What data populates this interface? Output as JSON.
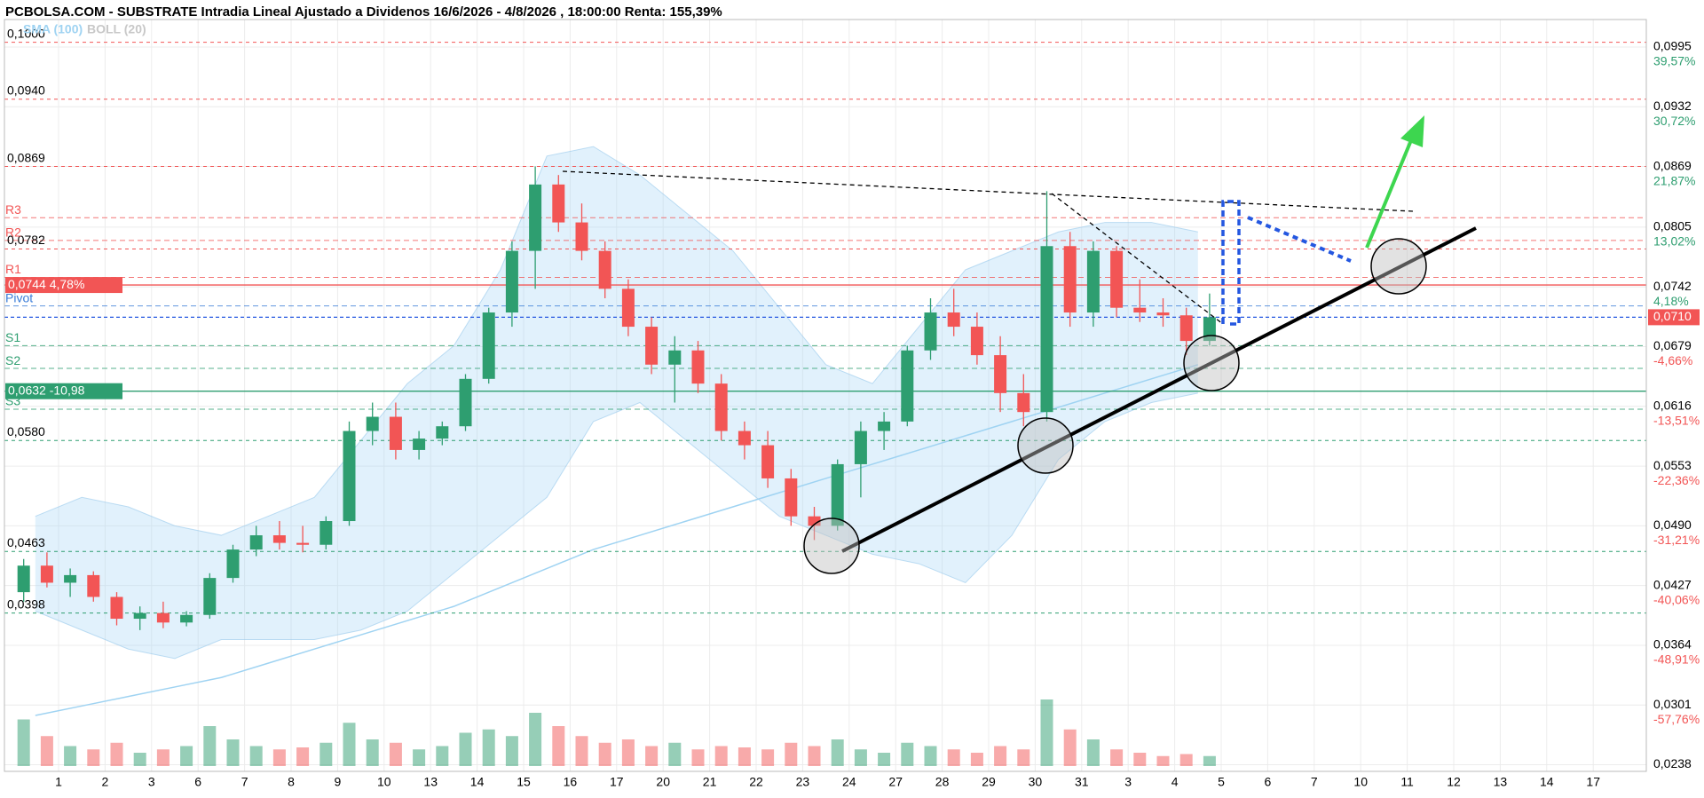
{
  "chart_data": {
    "type": "candlestick",
    "title": "PCBOLSA.COM - SUBSTRATE Intradia Lineal Ajustado a Dividenos 16/6/2026 - 4/8/2026 , 18:00:00 Renta: 155,39%",
    "indicators": [
      {
        "name": "SMA (100)",
        "color": "#9fd3f2"
      },
      {
        "name": "BOLL (20)",
        "color": "#c8c8c8"
      }
    ],
    "up_color": "#2e9e70",
    "down_color": "#f25555",
    "grid": true,
    "ylim": [
      0.0231,
      0.1024
    ],
    "yticks": [
      {
        "value": 0.0995,
        "label": "0,0995"
      },
      {
        "value": 0.0932,
        "label": "0,0932"
      },
      {
        "value": 0.0869,
        "label": "0,0869"
      },
      {
        "value": 0.0805,
        "label": "0,0805"
      },
      {
        "value": 0.0742,
        "label": "0,0742"
      },
      {
        "value": 0.0679,
        "label": "0,0679"
      },
      {
        "value": 0.0616,
        "label": "0,0616"
      },
      {
        "value": 0.0553,
        "label": "0,0553"
      },
      {
        "value": 0.049,
        "label": "0,0490"
      },
      {
        "value": 0.0427,
        "label": "0,0427"
      },
      {
        "value": 0.0364,
        "label": "0,0364"
      },
      {
        "value": 0.0301,
        "label": "0,0301"
      },
      {
        "value": 0.0238,
        "label": "0,0238"
      }
    ],
    "ytick_returns": [
      "39,57%",
      "30,72%",
      "21,87%",
      "13,02%",
      "4,18%",
      "-4,66%",
      "-13,51%",
      "-22,36%",
      "-31,21%",
      "-40,06%",
      "-48,91%",
      "-57,76%"
    ],
    "levels": [
      {
        "value": 0.1,
        "label": "0,1000",
        "color": "#f25555"
      },
      {
        "value": 0.094,
        "label": "0,0940",
        "color": "#f25555"
      },
      {
        "value": 0.0869,
        "label": "0,0869",
        "color": "#f25555"
      },
      {
        "value": 0.0782,
        "label": "0,0782",
        "color": "#f25555"
      },
      {
        "value": 0.058,
        "label": "0,0580",
        "color": "#2e9e70"
      },
      {
        "value": 0.0463,
        "label": "0,0463",
        "color": "#2e9e70"
      },
      {
        "value": 0.0398,
        "label": "0,0398",
        "color": "#2e9e70"
      }
    ],
    "pivots": [
      {
        "name": "R3",
        "value": 0.0815,
        "color": "#f25555"
      },
      {
        "name": "R2",
        "value": 0.0791,
        "color": "#f25555"
      },
      {
        "name": "R1",
        "value": 0.0752,
        "color": "#f25555"
      },
      {
        "name": "Pivot",
        "value": 0.0722,
        "color": "#3b7dd8"
      },
      {
        "name": "S1",
        "value": 0.068,
        "color": "#2e9e70"
      },
      {
        "name": "S2",
        "value": 0.0656,
        "color": "#2e9e70"
      },
      {
        "name": "S3",
        "value": 0.0613,
        "color": "#2e9e70"
      }
    ],
    "tags": [
      {
        "value": 0.0744,
        "label": "0,0744  4,78%",
        "color": "#f25555"
      },
      {
        "value": 0.0632,
        "label": "0,0632  -10,98",
        "color": "#2e9e70"
      }
    ],
    "last_price": {
      "value": 0.071,
      "label": "0,0710",
      "color": "#f25555"
    },
    "days": [
      {
        "label": "1",
        "candles": [
          [
            0.042,
            0.0455,
            0.041,
            0.0448
          ],
          [
            0.0448,
            0.0462,
            0.0425,
            0.043
          ]
        ],
        "volume": [
          70,
          45
        ]
      },
      {
        "label": "2",
        "candles": [
          [
            0.043,
            0.0445,
            0.0415,
            0.0438
          ],
          [
            0.0438,
            0.0442,
            0.041,
            0.0415
          ]
        ],
        "volume": [
          30,
          25
        ]
      },
      {
        "label": "3",
        "candles": [
          [
            0.0415,
            0.042,
            0.0385,
            0.0392
          ],
          [
            0.0392,
            0.0405,
            0.038,
            0.0398
          ]
        ],
        "volume": [
          35,
          20
        ]
      },
      {
        "label": "6",
        "candles": [
          [
            0.0398,
            0.041,
            0.0382,
            0.0388
          ],
          [
            0.0388,
            0.04,
            0.0384,
            0.0396
          ]
        ],
        "volume": [
          25,
          30
        ]
      },
      {
        "label": "7",
        "candles": [
          [
            0.0396,
            0.044,
            0.0392,
            0.0435
          ],
          [
            0.0435,
            0.047,
            0.043,
            0.0465
          ]
        ],
        "volume": [
          60,
          40
        ]
      },
      {
        "label": "8",
        "candles": [
          [
            0.0465,
            0.049,
            0.0458,
            0.048
          ],
          [
            0.048,
            0.0495,
            0.0465,
            0.0472
          ]
        ],
        "volume": [
          30,
          25
        ]
      },
      {
        "label": "9",
        "candles": [
          [
            0.0472,
            0.049,
            0.0462,
            0.047
          ],
          [
            0.047,
            0.05,
            0.0465,
            0.0495
          ]
        ],
        "volume": [
          28,
          35
        ]
      },
      {
        "label": "10",
        "candles": [
          [
            0.0495,
            0.06,
            0.049,
            0.059
          ],
          [
            0.059,
            0.062,
            0.0575,
            0.0605
          ]
        ],
        "volume": [
          65,
          40
        ]
      },
      {
        "label": "13",
        "candles": [
          [
            0.0605,
            0.062,
            0.056,
            0.057
          ],
          [
            0.057,
            0.059,
            0.056,
            0.0582
          ]
        ],
        "volume": [
          35,
          25
        ]
      },
      {
        "label": "14",
        "candles": [
          [
            0.0582,
            0.06,
            0.0575,
            0.0595
          ],
          [
            0.0595,
            0.065,
            0.059,
            0.0645
          ]
        ],
        "volume": [
          30,
          50
        ]
      },
      {
        "label": "15",
        "candles": [
          [
            0.0645,
            0.072,
            0.064,
            0.0715
          ],
          [
            0.0715,
            0.079,
            0.07,
            0.078
          ]
        ],
        "volume": [
          55,
          45
        ]
      },
      {
        "label": "16",
        "candles": [
          [
            0.078,
            0.0869,
            0.074,
            0.085
          ],
          [
            0.085,
            0.086,
            0.08,
            0.081
          ]
        ],
        "volume": [
          80,
          60
        ]
      },
      {
        "label": "17",
        "candles": [
          [
            0.081,
            0.083,
            0.077,
            0.078
          ],
          [
            0.078,
            0.079,
            0.073,
            0.074
          ]
        ],
        "volume": [
          45,
          35
        ]
      },
      {
        "label": "20",
        "candles": [
          [
            0.074,
            0.075,
            0.069,
            0.07
          ],
          [
            0.07,
            0.071,
            0.065,
            0.066
          ]
        ],
        "volume": [
          40,
          30
        ]
      },
      {
        "label": "21",
        "candles": [
          [
            0.066,
            0.069,
            0.062,
            0.0675
          ],
          [
            0.0675,
            0.0685,
            0.063,
            0.064
          ]
        ],
        "volume": [
          35,
          25
        ]
      },
      {
        "label": "22",
        "candles": [
          [
            0.064,
            0.065,
            0.058,
            0.059
          ],
          [
            0.059,
            0.06,
            0.056,
            0.0575
          ]
        ],
        "volume": [
          30,
          28
        ]
      },
      {
        "label": "23",
        "candles": [
          [
            0.0575,
            0.059,
            0.053,
            0.054
          ],
          [
            0.054,
            0.055,
            0.049,
            0.05
          ]
        ],
        "volume": [
          25,
          35
        ]
      },
      {
        "label": "24",
        "candles": [
          [
            0.05,
            0.051,
            0.0475,
            0.049
          ],
          [
            0.049,
            0.056,
            0.0485,
            0.0555
          ]
        ],
        "volume": [
          30,
          40
        ]
      },
      {
        "label": "27",
        "candles": [
          [
            0.0555,
            0.06,
            0.052,
            0.059
          ],
          [
            0.059,
            0.061,
            0.057,
            0.06
          ]
        ],
        "volume": [
          25,
          20
        ]
      },
      {
        "label": "28",
        "candles": [
          [
            0.06,
            0.068,
            0.0595,
            0.0675
          ],
          [
            0.0675,
            0.073,
            0.0665,
            0.0715
          ]
        ],
        "volume": [
          35,
          30
        ]
      },
      {
        "label": "29",
        "candles": [
          [
            0.0715,
            0.074,
            0.069,
            0.07
          ],
          [
            0.07,
            0.0715,
            0.066,
            0.067
          ]
        ],
        "volume": [
          25,
          20
        ]
      },
      {
        "label": "30",
        "candles": [
          [
            0.067,
            0.069,
            0.061,
            0.063
          ],
          [
            0.063,
            0.065,
            0.0595,
            0.061
          ]
        ],
        "volume": [
          30,
          25
        ]
      },
      {
        "label": "31",
        "candles": [
          [
            0.061,
            0.0843,
            0.06,
            0.0785
          ],
          [
            0.0785,
            0.08,
            0.07,
            0.0715
          ]
        ],
        "volume": [
          100,
          55
        ]
      },
      {
        "label": "3",
        "candles": [
          [
            0.0715,
            0.079,
            0.07,
            0.078
          ],
          [
            0.078,
            0.0785,
            0.071,
            0.072
          ]
        ],
        "volume": [
          40,
          25
        ]
      },
      {
        "label": "4",
        "candles": [
          [
            0.072,
            0.075,
            0.0705,
            0.0715
          ],
          [
            0.0715,
            0.073,
            0.07,
            0.0712
          ]
        ],
        "volume": [
          20,
          15
        ]
      },
      {
        "label": "5",
        "candles": [
          [
            0.0712,
            0.072,
            0.067,
            0.0685
          ],
          [
            0.0685,
            0.0735,
            0.068,
            0.071
          ]
        ],
        "volume": [
          18,
          15
        ]
      },
      {
        "label": "6",
        "candles": [],
        "volume": []
      },
      {
        "label": "7",
        "candles": [],
        "volume": []
      },
      {
        "label": "10",
        "candles": [],
        "volume": []
      },
      {
        "label": "11",
        "candles": [],
        "volume": []
      },
      {
        "label": "12",
        "candles": [],
        "volume": []
      },
      {
        "label": "13",
        "candles": [],
        "volume": []
      },
      {
        "label": "14",
        "candles": [],
        "volume": []
      },
      {
        "label": "17",
        "candles": [],
        "volume": []
      }
    ],
    "boll": {
      "upper": [
        0.05,
        0.052,
        0.051,
        0.049,
        0.048,
        0.05,
        0.052,
        0.058,
        0.064,
        0.068,
        0.076,
        0.088,
        0.089,
        0.086,
        0.082,
        0.078,
        0.072,
        0.066,
        0.064,
        0.07,
        0.076,
        0.078,
        0.08,
        0.081,
        0.081,
        0.08
      ],
      "lower": [
        0.04,
        0.038,
        0.036,
        0.035,
        0.037,
        0.037,
        0.037,
        0.038,
        0.04,
        0.044,
        0.048,
        0.052,
        0.06,
        0.062,
        0.058,
        0.054,
        0.05,
        0.048,
        0.046,
        0.045,
        0.043,
        0.048,
        0.056,
        0.06,
        0.062,
        0.063
      ]
    },
    "sma": [
      0.029,
      0.03,
      0.031,
      0.032,
      0.033,
      0.0345,
      0.036,
      0.0375,
      0.039,
      0.0405,
      0.0425,
      0.0445,
      0.0465,
      0.048,
      0.0495,
      0.051,
      0.0525,
      0.054,
      0.0555,
      0.057,
      0.0585,
      0.06,
      0.0615,
      0.063,
      0.0645,
      0.066
    ]
  }
}
